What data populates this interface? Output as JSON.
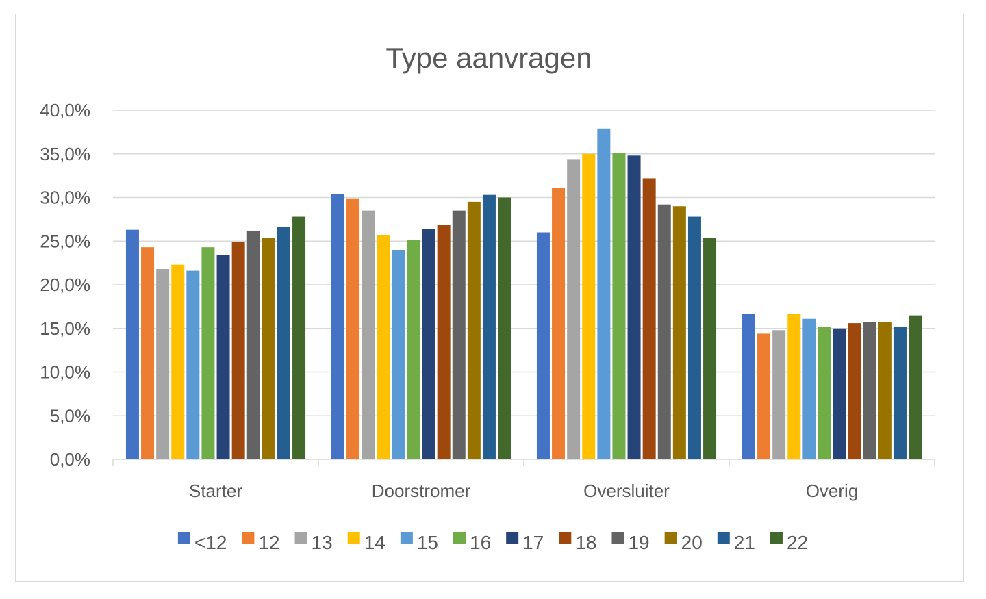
{
  "chart_data": {
    "type": "bar",
    "title": "Type aanvragen",
    "xlabel": "",
    "ylabel": "",
    "ylim": [
      0,
      40
    ],
    "y_ticks": [
      "0,0%",
      "5,0%",
      "10,0%",
      "15,0%",
      "20,0%",
      "25,0%",
      "30,0%",
      "35,0%",
      "40,0%"
    ],
    "y_tick_values": [
      0,
      5,
      10,
      15,
      20,
      25,
      30,
      35,
      40
    ],
    "grid": true,
    "legend_position": "bottom",
    "categories": [
      "Starter",
      "Doorstromer",
      "Oversluiter",
      "Overig"
    ],
    "series": [
      {
        "name": "<12",
        "color": "#4472C4",
        "values": [
          26.3,
          30.4,
          26.0,
          16.7
        ]
      },
      {
        "name": "12",
        "color": "#ED7D31",
        "values": [
          24.3,
          29.9,
          31.1,
          14.4
        ]
      },
      {
        "name": "13",
        "color": "#A5A5A5",
        "values": [
          21.8,
          28.5,
          34.4,
          14.8
        ]
      },
      {
        "name": "14",
        "color": "#FFC000",
        "values": [
          22.3,
          25.7,
          35.0,
          16.7
        ]
      },
      {
        "name": "15",
        "color": "#5B9BD5",
        "values": [
          21.6,
          24.0,
          37.9,
          16.1
        ]
      },
      {
        "name": "16",
        "color": "#70AD47",
        "values": [
          24.3,
          25.1,
          35.1,
          15.2
        ]
      },
      {
        "name": "17",
        "color": "#264478",
        "values": [
          23.4,
          26.4,
          34.8,
          15.0
        ]
      },
      {
        "name": "18",
        "color": "#9E480E",
        "values": [
          24.9,
          26.9,
          32.2,
          15.6
        ]
      },
      {
        "name": "19",
        "color": "#636363",
        "values": [
          26.2,
          28.5,
          29.2,
          15.7
        ]
      },
      {
        "name": "20",
        "color": "#997300",
        "values": [
          25.4,
          29.5,
          29.0,
          15.7
        ]
      },
      {
        "name": "21",
        "color": "#255E91",
        "values": [
          26.6,
          30.3,
          27.8,
          15.2
        ]
      },
      {
        "name": "22",
        "color": "#43682B",
        "values": [
          27.8,
          30.0,
          25.4,
          16.5
        ]
      }
    ]
  }
}
